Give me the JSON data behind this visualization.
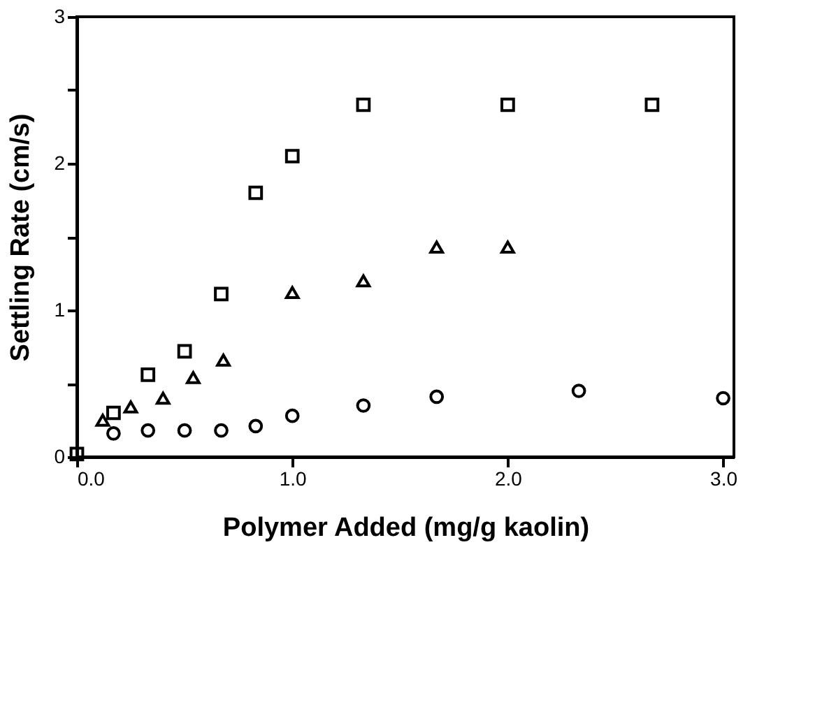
{
  "chart_data": {
    "type": "scatter",
    "xlabel": "Polymer Added (mg/g kaolin)",
    "ylabel": "Settling Rate (cm/s)",
    "xlim": [
      0,
      3.05
    ],
    "ylim": [
      0,
      3
    ],
    "xticks": [
      {
        "value": 0,
        "label": "0.0"
      },
      {
        "value": 1,
        "label": "1.0"
      },
      {
        "value": 2,
        "label": "2.0"
      },
      {
        "value": 3,
        "label": "3.0"
      }
    ],
    "yticks": [
      0,
      {
        "value": 0.5,
        "label": null
      },
      1,
      {
        "value": 1.5,
        "label": null
      },
      2,
      {
        "value": 2.5,
        "label": null
      },
      3
    ],
    "grid": false,
    "series": [
      {
        "color": "#000000",
        "marker": "square",
        "x": [
          0,
          0.17,
          0.33,
          0.5,
          0.67,
          0.83,
          1.0,
          1.33,
          2.0,
          2.67
        ],
        "values": [
          0.02,
          0.3,
          0.56,
          0.72,
          1.11,
          1.8,
          2.05,
          2.4,
          2.4,
          2.4
        ]
      },
      {
        "color": "#000000",
        "marker": "triangle",
        "x": [
          0.12,
          0.25,
          0.4,
          0.54,
          0.68,
          1.0,
          1.33,
          1.67,
          2.0
        ],
        "values": [
          0.25,
          0.34,
          0.4,
          0.54,
          0.66,
          1.12,
          1.2,
          1.43,
          1.43
        ]
      },
      {
        "color": "#000000",
        "marker": "circle",
        "x": [
          0.17,
          0.33,
          0.5,
          0.67,
          0.83,
          1.0,
          1.33,
          1.67,
          2.33,
          3.0
        ],
        "values": [
          0.16,
          0.18,
          0.18,
          0.18,
          0.21,
          0.28,
          0.35,
          0.41,
          0.45,
          0.4
        ]
      }
    ]
  }
}
